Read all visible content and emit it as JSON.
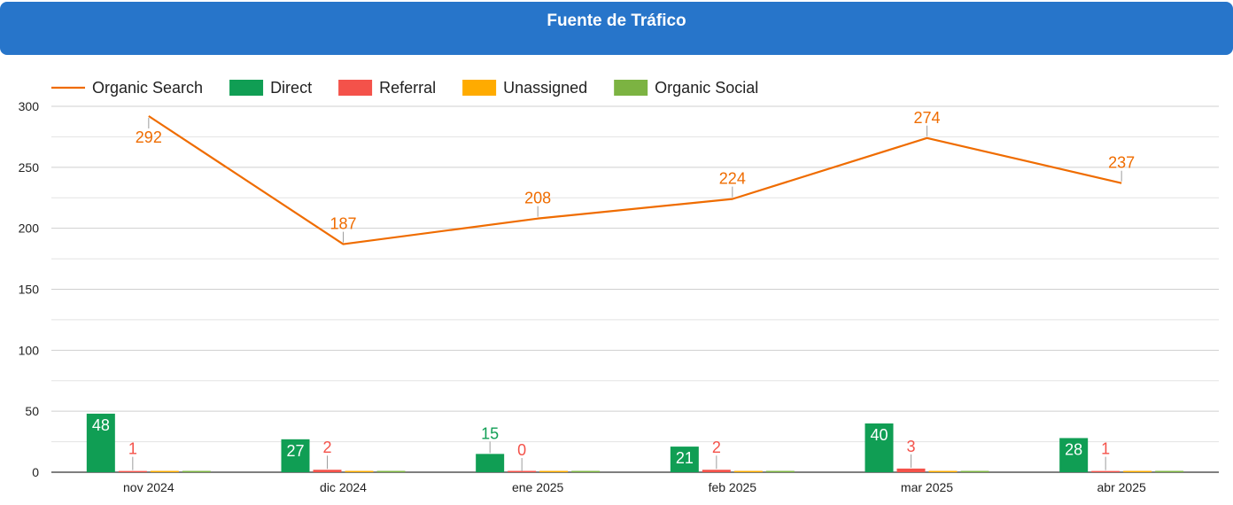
{
  "header": {
    "title": "Fuente de Tráfico"
  },
  "colors": {
    "header_bg": "#2775ca",
    "organic_search": "#ef6c00",
    "direct": "#109e54",
    "referral": "#f4524a",
    "unassigned": "#ffab00",
    "organic_social": "#7cb342"
  },
  "chart_data": {
    "type": "bar",
    "title": "Fuente de Tráfico",
    "categories": [
      "nov 2024",
      "dic 2024",
      "ene 2025",
      "feb 2025",
      "mar 2025",
      "abr 2025"
    ],
    "ylim": [
      0,
      300
    ],
    "yticks": [
      0,
      50,
      100,
      150,
      200,
      250,
      300
    ],
    "grid": true,
    "legend_position": "top-left",
    "series": [
      {
        "name": "Organic Search",
        "kind": "line",
        "values": [
          292,
          187,
          208,
          224,
          274,
          237
        ],
        "color": "#ef6c00"
      },
      {
        "name": "Direct",
        "kind": "bar",
        "values": [
          48,
          27,
          15,
          21,
          40,
          28
        ],
        "color": "#109e54"
      },
      {
        "name": "Referral",
        "kind": "bar",
        "values": [
          1,
          2,
          0,
          2,
          3,
          1
        ],
        "color": "#f4524a"
      },
      {
        "name": "Unassigned",
        "kind": "bar",
        "values": [
          0,
          0,
          0,
          0,
          0,
          0
        ],
        "color": "#ffab00"
      },
      {
        "name": "Organic Social",
        "kind": "bar",
        "values": [
          0,
          0,
          0,
          0,
          0,
          0
        ],
        "color": "#7cb342"
      }
    ]
  }
}
